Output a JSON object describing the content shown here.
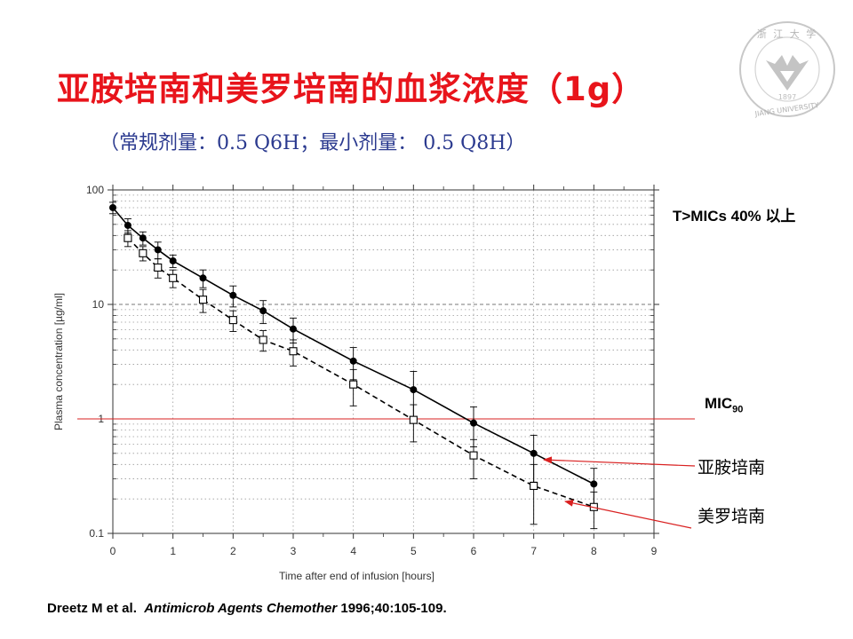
{
  "slide": {
    "title": "亚胺培南和美罗培南的血浆浓度（1g）",
    "subtitle": "（常规剂量：0.5 Q6H；最小剂量： 0.5 Q8H）",
    "logo_text": "浙 江 大 学",
    "logo_year": "1897",
    "logo_english": "JIANG UNIVERSITY",
    "note_tmic": "T>MICs 40% 以上",
    "mic_label_main": "MIC",
    "mic_label_sub": "90",
    "label_imipenem": "亚胺培南",
    "label_meropenem": "美罗培南",
    "citation": {
      "authors": "Dreetz M et al.",
      "journal": "Antimicrob Agents Chemother",
      "ref": " 1996;40:105-109."
    }
  },
  "colors": {
    "title": "#e8141b",
    "subtitle": "#2b3a8f",
    "mic_line": "#d92020",
    "arrow": "#d92020",
    "data": "#000000"
  },
  "chart_data": {
    "type": "line",
    "xlabel": "Time after end of infusion [hours]",
    "ylabel": "Plasma concentration [µg/ml]",
    "xlim": [
      0,
      9
    ],
    "ylim": [
      0.1,
      100
    ],
    "yscale": "log",
    "xticks": [
      "0",
      "1",
      "2",
      "3",
      "4",
      "5",
      "6",
      "7",
      "8",
      "9"
    ],
    "yticks": [
      "0.1",
      "1",
      "10",
      "100"
    ],
    "grid": true,
    "reference_line": {
      "y": 1
    },
    "series": [
      {
        "key": "imipenem",
        "marker": "filled-circle",
        "line": "solid",
        "x": [
          0,
          0.25,
          0.5,
          0.75,
          1,
          1.5,
          2,
          2.5,
          3,
          4,
          5,
          6,
          7,
          8
        ],
        "y": [
          70,
          49,
          38,
          30,
          24,
          17,
          12,
          8.8,
          6.1,
          3.2,
          1.8,
          0.92,
          0.5,
          0.27
        ],
        "err": [
          8,
          7,
          5,
          5,
          3,
          3,
          2.5,
          2,
          1.5,
          1,
          0.8,
          0.35,
          0.22,
          0.1
        ]
      },
      {
        "key": "meropenem",
        "marker": "open-square",
        "line": "dashed",
        "x": [
          0.25,
          0.5,
          0.75,
          1,
          1.5,
          2,
          2.5,
          3,
          4,
          5,
          6,
          7,
          8
        ],
        "y": [
          38,
          28,
          21,
          17,
          11,
          7.3,
          4.9,
          3.9,
          2.0,
          0.98,
          0.48,
          0.26,
          0.17
        ],
        "err": [
          6,
          4,
          4,
          3,
          2.5,
          1.5,
          1,
          1,
          0.7,
          0.35,
          0.18,
          0.14,
          0.06
        ]
      }
    ]
  }
}
